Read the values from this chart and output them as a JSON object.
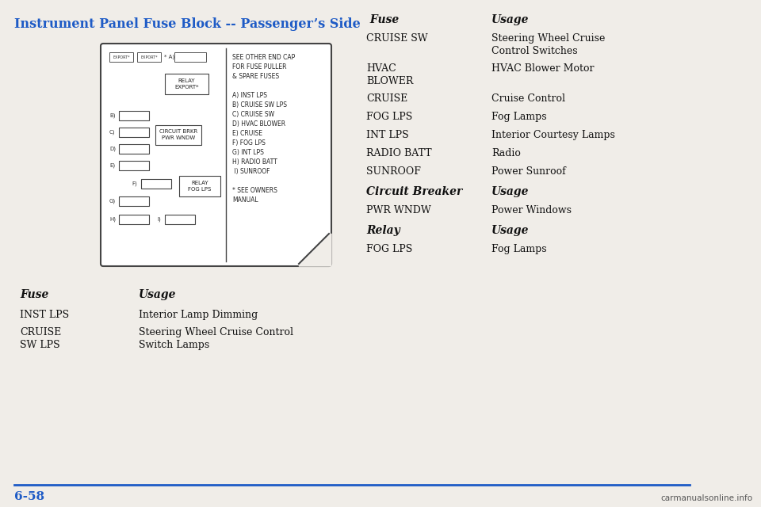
{
  "title": "Instrument Panel Fuse Block -- Passenger’s Side",
  "title_color": "#1e5bc6",
  "title_fontsize": 11.5,
  "bg_color": "#f0ede8",
  "page_number": "6-58",
  "left_table_header": [
    "Fuse",
    "Usage"
  ],
  "left_table": [
    [
      "INST LPS",
      "Interior Lamp Dimming"
    ],
    [
      "CRUISE\nSW LPS",
      "Steering Wheel Cruise Control\nSwitch Lamps"
    ]
  ],
  "right_table_fuse_header": [
    " Fuse",
    "Usage"
  ],
  "right_table_fuse": [
    [
      "CRUISE SW",
      "Steering Wheel Cruise\nControl Switches"
    ],
    [
      "HVAC\nBLOWER",
      "HVAC Blower Motor"
    ],
    [
      "CRUISE",
      "Cruise Control"
    ],
    [
      "FOG LPS",
      "Fog Lamps"
    ],
    [
      "INT LPS",
      "Interior Courtesy Lamps"
    ],
    [
      "RADIO BATT",
      "Radio"
    ],
    [
      "SUNROOF",
      "Power Sunroof"
    ]
  ],
  "right_table_cb_header": [
    "Circuit Breaker",
    "Usage"
  ],
  "right_table_cb": [
    [
      "PWR WNDW",
      "Power Windows"
    ]
  ],
  "right_table_relay_header": [
    "Relay",
    "Usage"
  ],
  "right_table_relay": [
    [
      "FOG LPS",
      "Fog Lamps"
    ]
  ],
  "watermark": "carmanualsonline.info",
  "diagram_notes_right": [
    "SEE OTHER END CAP",
    "FOR FUSE PULLER",
    "& SPARE FUSES",
    "",
    "A) INST LPS",
    "B) CRUISE SW LPS",
    "C) CRUISE SW",
    "D) HVAC BLOWER",
    "E) CRUISE",
    "F) FOG LPS",
    "G) INT LPS",
    "H) RADIO BATT",
    " I) SUNROOF",
    "",
    "* SEE OWNERS",
    "MANUAL"
  ]
}
